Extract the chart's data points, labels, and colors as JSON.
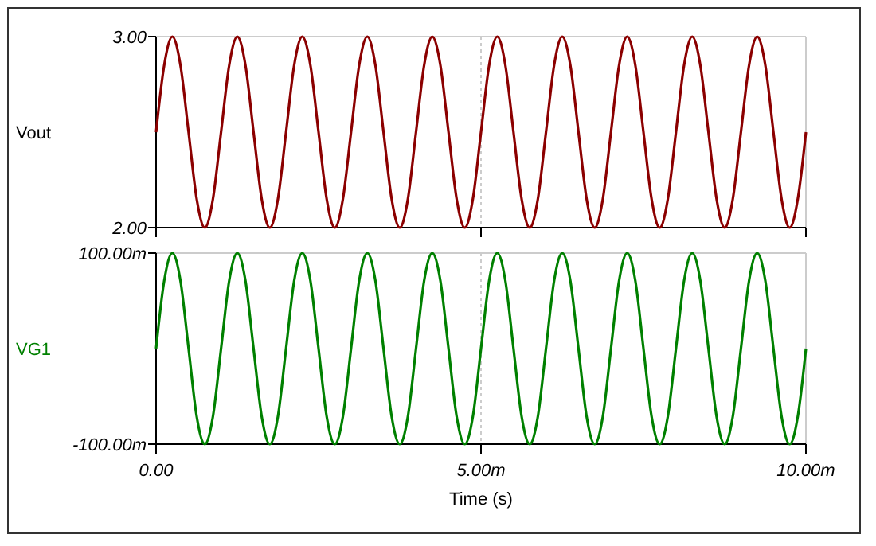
{
  "chart_data": [
    {
      "type": "line",
      "ylabel": "Vout",
      "tick_labels": "y",
      "grid": true,
      "xlim": [
        0,
        10
      ],
      "xticks": [
        {
          "value": 0,
          "label": null
        },
        {
          "value": 5,
          "label": null
        },
        {
          "value": 10,
          "label": null
        }
      ],
      "ylim": [
        2,
        3
      ],
      "yticks": [
        {
          "value": 2,
          "label": "2.00"
        },
        {
          "value": 3,
          "label": "3.00"
        }
      ],
      "x": [
        0,
        0.125,
        0.25,
        0.375,
        0.5,
        0.625,
        0.75,
        0.875,
        1,
        1.125,
        1.25,
        1.375,
        1.5,
        1.625,
        1.75,
        1.875,
        2,
        2.125,
        2.25,
        2.375,
        2.5,
        2.625,
        2.75,
        2.875,
        3,
        3.125,
        3.25,
        3.375,
        3.5,
        3.625,
        3.75,
        3.875,
        4,
        4.125,
        4.25,
        4.375,
        4.5,
        4.625,
        4.75,
        4.875,
        5,
        5.125,
        5.25,
        5.375,
        5.5,
        5.625,
        5.75,
        5.875,
        6,
        6.125,
        6.25,
        6.375,
        6.5,
        6.625,
        6.75,
        6.875,
        7,
        7.125,
        7.25,
        7.375,
        7.5,
        7.625,
        7.75,
        7.875,
        8,
        8.125,
        8.25,
        8.375,
        8.5,
        8.625,
        8.75,
        8.875,
        9,
        9.125,
        9.25,
        9.375,
        9.5,
        9.625,
        9.75,
        9.875,
        10
      ],
      "series": [
        {
          "color": "#8b0000",
          "values": [
            2.5,
            2.85,
            3,
            2.85,
            2.5,
            2.15,
            2,
            2.15,
            2.5,
            2.85,
            3,
            2.85,
            2.5,
            2.15,
            2,
            2.15,
            2.5,
            2.85,
            3,
            2.85,
            2.5,
            2.15,
            2,
            2.15,
            2.5,
            2.85,
            3,
            2.85,
            2.5,
            2.15,
            2,
            2.15,
            2.5,
            2.85,
            3,
            2.85,
            2.5,
            2.15,
            2,
            2.15,
            2.5,
            2.85,
            3,
            2.85,
            2.5,
            2.15,
            2,
            2.15,
            2.5,
            2.85,
            3,
            2.85,
            2.5,
            2.15,
            2,
            2.15,
            2.5,
            2.85,
            3,
            2.85,
            2.5,
            2.15,
            2,
            2.15,
            2.5,
            2.85,
            3,
            2.85,
            2.5,
            2.15,
            2,
            2.15,
            2.5,
            2.85,
            3,
            2.85,
            2.5,
            2.15,
            2,
            2.15,
            2.5
          ]
        }
      ]
    },
    {
      "type": "line",
      "xlabel": "Time (s)",
      "grid": true,
      "xlim": [
        0,
        10
      ],
      "xticks": [
        {
          "value": 0,
          "label": "0.00"
        },
        {
          "value": 5,
          "label": "5.00m"
        },
        {
          "value": 10,
          "label": "10.00m"
        }
      ],
      "ylim": [
        -100,
        100
      ],
      "yticks": [
        {
          "value": -100,
          "label": "-100.00m"
        },
        {
          "value": 100,
          "label": "100.00m"
        }
      ],
      "x": [
        0,
        0.125,
        0.25,
        0.375,
        0.5,
        0.625,
        0.75,
        0.875,
        1,
        1.125,
        1.25,
        1.375,
        1.5,
        1.625,
        1.75,
        1.875,
        2,
        2.125,
        2.25,
        2.375,
        2.5,
        2.625,
        2.75,
        2.875,
        3,
        3.125,
        3.25,
        3.375,
        3.5,
        3.625,
        3.75,
        3.875,
        4,
        4.125,
        4.25,
        4.375,
        4.5,
        4.625,
        4.75,
        4.875,
        5,
        5.125,
        5.25,
        5.375,
        5.5,
        5.625,
        5.75,
        5.875,
        6,
        6.125,
        6.25,
        6.375,
        6.5,
        6.625,
        6.75,
        6.875,
        7,
        7.125,
        7.25,
        7.375,
        7.5,
        7.625,
        7.75,
        7.875,
        8,
        8.125,
        8.25,
        8.375,
        8.5,
        8.625,
        8.75,
        8.875,
        9,
        9.125,
        9.25,
        9.375,
        9.5,
        9.625,
        9.75,
        9.875,
        10
      ],
      "series": [
        {
          "name": "VG1",
          "color": "#008000",
          "values": [
            0,
            71,
            100,
            71,
            0,
            -71,
            -100,
            -71,
            0,
            71,
            100,
            71,
            0,
            -71,
            -100,
            -71,
            0,
            71,
            100,
            71,
            0,
            -71,
            -100,
            -71,
            0,
            71,
            100,
            71,
            0,
            -71,
            -100,
            -71,
            0,
            71,
            100,
            71,
            0,
            -71,
            -100,
            -71,
            0,
            71,
            100,
            71,
            0,
            -71,
            -100,
            -71,
            0,
            71,
            100,
            71,
            0,
            -71,
            -100,
            -71,
            0,
            71,
            100,
            71,
            0,
            -71,
            -100,
            -71,
            0,
            71,
            100,
            71,
            0,
            -71,
            -100,
            -71,
            0,
            71,
            100,
            71,
            0,
            -71,
            -100,
            -71,
            0
          ]
        }
      ]
    }
  ]
}
